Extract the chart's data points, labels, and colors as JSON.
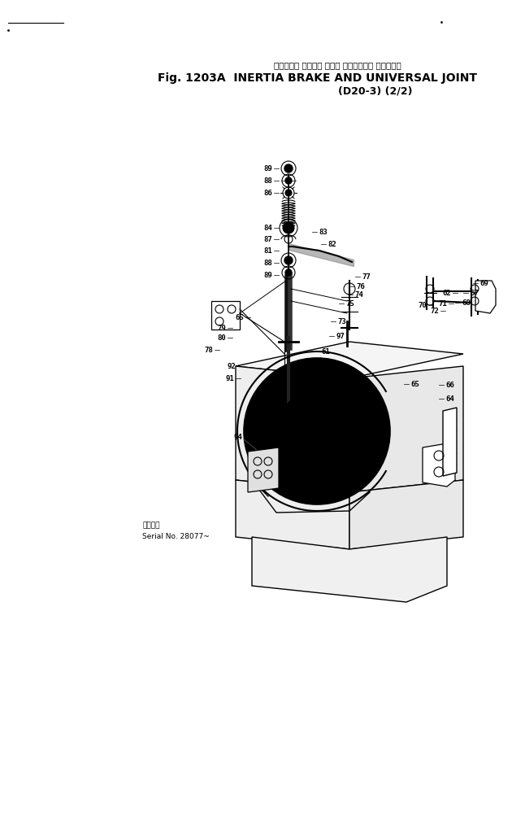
{
  "title_jp": "イナーシャ ブレーキ および ユニバーサル ジョイント",
  "title_en": "Fig. 1203A  INERTIA BRAKE AND UNIVERSAL JOINT",
  "title_sub": "(D20-3) (2/2)",
  "serial_label": "適用号機",
  "serial_no": "Serial No. 28077~",
  "bg_color": "#ffffff",
  "fig_width": 6.46,
  "fig_height": 10.14,
  "dpi": 100
}
